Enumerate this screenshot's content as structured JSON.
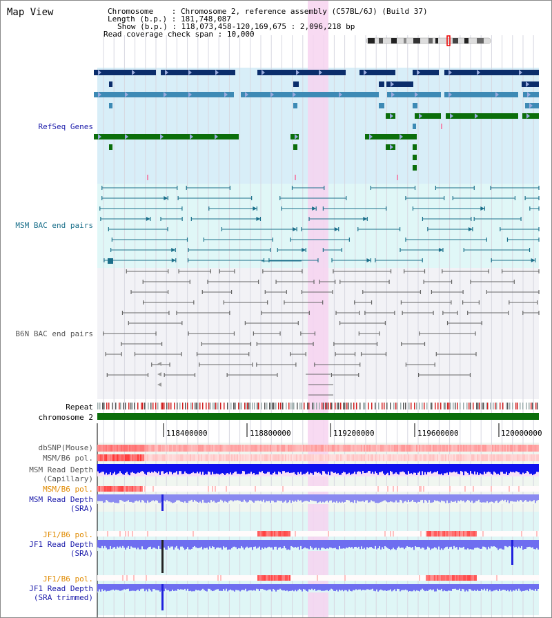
{
  "title": "Map View",
  "info": {
    "chromosome_label": "Chromosome",
    "chromosome_value": "Chromosome 2, reference assembly (C57BL/6J) (Build 37)",
    "length_label": "Length (b.p.)",
    "length_value": "181,748,087",
    "show_label": "Show (b.p.)",
    "show_value": "118,073,458-120,169,675 : 2,096,218 bp",
    "coverage_label": "Read coverage check span",
    "coverage_value": "10,000"
  },
  "tracks": {
    "refseq": "RefSeq Genes",
    "msm_bac": "MSM BAC end pairs",
    "b6n_bac": "B6N BAC end pairs",
    "repeat": "Repeat",
    "chromosome": "chromosome 2",
    "dbsnp": "dbSNP(Mouse)",
    "msm_b6_pol_1": "MSM/B6 pol.",
    "msm_depth_cap_1": "MSM Read Depth",
    "msm_depth_cap_2": "(Capillary)",
    "msm_b6_pol_2": "MSM/B6 pol.",
    "msm_depth_sra_1": "MSM Read Depth",
    "msm_depth_sra_2": "(SRA)",
    "jf1_b6_pol_1": "JF1/B6 pol.",
    "jf1_depth_sra_1": "JF1 Read Depth",
    "jf1_depth_sra_2": "(SRA)",
    "jf1_b6_pol_2": "JF1/B6 pol.",
    "jf1_depth_trim_1": "JF1 Read Depth",
    "jf1_depth_trim_2": "(SRA trimmed)"
  },
  "axis_ticks": [
    "118400000",
    "118800000",
    "119200000",
    "119600000",
    "120000000"
  ],
  "colors": {
    "refseq_dark": "#0b2d6b",
    "refseq_mid": "#3d8ab5",
    "refseq_green": "#0b6e0b",
    "msm_bac": "#1a6f8a",
    "b6n_bac": "#666666",
    "highlight": "#f7d3f0",
    "depth_blue": "#1010ee",
    "depth_light": "#8080f0",
    "pol_red": "#e03030"
  }
}
